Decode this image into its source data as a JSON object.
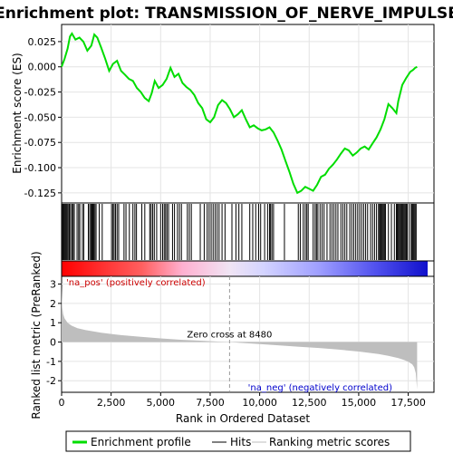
{
  "chart_data": {
    "type": "line",
    "title": "Enrichment plot: TRANSMISSION_OF_NERVE_IMPULSE",
    "xlabel": "Rank in Ordered Dataset",
    "xlim": [
      0,
      18800
    ],
    "x_ticks": [
      0,
      2500,
      5000,
      7500,
      10000,
      12500,
      15000,
      17500
    ],
    "x_tick_labels": [
      "0",
      "2,500",
      "5,000",
      "7,500",
      "10,000",
      "12,500",
      "15,000",
      "17,500"
    ],
    "panels": {
      "es": {
        "ylabel": "Enrichment score (ES)",
        "ylim": [
          -0.135,
          0.042
        ],
        "y_ticks": [
          0.025,
          0.0,
          -0.025,
          -0.05,
          -0.075,
          -0.1,
          -0.125
        ],
        "y_tick_labels": [
          "0.025",
          "0.000",
          "-0.025",
          "-0.050",
          "-0.075",
          "-0.100",
          "-0.125"
        ],
        "series": {
          "name": "Enrichment profile",
          "color": "#00dd00",
          "x": [
            0,
            150,
            300,
            420,
            520,
            700,
            900,
            1100,
            1300,
            1500,
            1650,
            1800,
            2000,
            2200,
            2400,
            2600,
            2800,
            3000,
            3200,
            3400,
            3600,
            3800,
            4000,
            4200,
            4400,
            4550,
            4700,
            4900,
            5100,
            5300,
            5500,
            5700,
            5900,
            6100,
            6300,
            6500,
            6700,
            6900,
            7100,
            7300,
            7500,
            7700,
            7900,
            8100,
            8300,
            8500,
            8700,
            8900,
            9100,
            9300,
            9500,
            9700,
            9900,
            10100,
            10300,
            10500,
            10700,
            10900,
            11100,
            11300,
            11500,
            11700,
            11900,
            12100,
            12300,
            12500,
            12700,
            12900,
            13100,
            13300,
            13500,
            13700,
            13900,
            14100,
            14300,
            14500,
            14700,
            14900,
            15100,
            15300,
            15500,
            15700,
            15900,
            16100,
            16300,
            16500,
            16700,
            16900,
            17000,
            17200,
            17400,
            17600,
            17750,
            17850,
            17950
          ],
          "y": [
            0.0,
            0.008,
            0.018,
            0.03,
            0.033,
            0.027,
            0.029,
            0.025,
            0.016,
            0.021,
            0.032,
            0.029,
            0.019,
            0.008,
            -0.004,
            0.003,
            0.006,
            -0.004,
            -0.008,
            -0.012,
            -0.014,
            -0.021,
            -0.025,
            -0.031,
            -0.034,
            -0.026,
            -0.014,
            -0.021,
            -0.018,
            -0.012,
            -0.001,
            -0.01,
            -0.007,
            -0.016,
            -0.02,
            -0.023,
            -0.028,
            -0.036,
            -0.041,
            -0.052,
            -0.055,
            -0.05,
            -0.038,
            -0.033,
            -0.036,
            -0.042,
            -0.05,
            -0.047,
            -0.043,
            -0.052,
            -0.06,
            -0.058,
            -0.061,
            -0.063,
            -0.062,
            -0.06,
            -0.065,
            -0.073,
            -0.082,
            -0.093,
            -0.104,
            -0.116,
            -0.125,
            -0.123,
            -0.119,
            -0.121,
            -0.123,
            -0.117,
            -0.109,
            -0.107,
            -0.101,
            -0.097,
            -0.092,
            -0.086,
            -0.081,
            -0.083,
            -0.088,
            -0.085,
            -0.081,
            -0.079,
            -0.082,
            -0.076,
            -0.07,
            -0.062,
            -0.052,
            -0.037,
            -0.041,
            -0.046,
            -0.034,
            -0.018,
            -0.011,
            -0.005,
            -0.003,
            -0.001,
            0.0
          ]
        }
      },
      "hits": {
        "label": "Hits",
        "positions": [
          40,
          90,
          130,
          180,
          230,
          280,
          330,
          390,
          450,
          520,
          580,
          640,
          780,
          860,
          920,
          1050,
          1120,
          1350,
          1420,
          1480,
          1530,
          1580,
          1620,
          1680,
          1740,
          1900,
          2050,
          2520,
          2590,
          2650,
          2720,
          2800,
          2880,
          3150,
          3250,
          3420,
          3600,
          3700,
          3780,
          4050,
          4200,
          4450,
          4520,
          4600,
          4680,
          4800,
          5000,
          5100,
          5180,
          5250,
          5320,
          5400,
          5600,
          5700,
          5850,
          5950,
          6050,
          6350,
          6450,
          6550,
          7000,
          7200,
          7350,
          7450,
          7550,
          7650,
          7750,
          7850,
          7950,
          8100,
          8250,
          8600,
          8800,
          8950,
          9100,
          9500,
          9650,
          9800,
          9950,
          10050,
          10250,
          10400,
          10500,
          10550,
          10620,
          10700,
          11250,
          11950,
          12050,
          12200,
          12300,
          12380,
          12450,
          12700,
          12800,
          12870,
          12940,
          13050,
          13150,
          13250,
          13400,
          13550,
          13650,
          13750,
          13850,
          13950,
          14100,
          14200,
          14300,
          14400,
          14550,
          14650,
          14750,
          14850,
          14950,
          15050,
          15150,
          15250,
          15350,
          15450,
          15600,
          15700,
          15800,
          15900,
          16000,
          16050,
          16100,
          16150,
          16200,
          16250,
          16300,
          16350,
          16500,
          16650,
          16800,
          16900,
          16950,
          17000,
          17050,
          17100,
          17150,
          17200,
          17250,
          17300,
          17350,
          17400,
          17450,
          17550,
          17650,
          17700,
          17750,
          17800,
          17850,
          17900
        ]
      },
      "ranked_metric": {
        "ylabel": "Ranked list metric (PreRanked)",
        "ylim": [
          -2.6,
          3.4
        ],
        "y_ticks": [
          3,
          2,
          1,
          0,
          -1,
          -2
        ],
        "y_tick_labels": [
          "3",
          "2",
          "1",
          "0",
          "-1",
          "-2"
        ],
        "series": {
          "name": "Ranking metric scores",
          "color": "#bebebe",
          "x": [
            0,
            30,
            80,
            150,
            300,
            500,
            800,
            1200,
            2000,
            3000,
            4000,
            5000,
            6000,
            7000,
            8000,
            8480,
            9000,
            10000,
            11000,
            12000,
            13000,
            14000,
            15000,
            16000,
            16500,
            17000,
            17300,
            17500,
            17700,
            17800,
            17880,
            17950
          ],
          "y": [
            2.9,
            1.8,
            1.45,
            1.22,
            1.0,
            0.85,
            0.72,
            0.62,
            0.48,
            0.36,
            0.27,
            0.19,
            0.12,
            0.07,
            0.02,
            0.0,
            -0.04,
            -0.1,
            -0.17,
            -0.24,
            -0.31,
            -0.39,
            -0.49,
            -0.62,
            -0.71,
            -0.83,
            -0.93,
            -1.02,
            -1.15,
            -1.3,
            -1.6,
            -2.45
          ]
        },
        "zero_cross_label": "Zero cross at 8480",
        "zero_cross_x": 8480,
        "pos_label": "'na_pos' (positively correlated)",
        "neg_label": "'na_neg' (negatively correlated)",
        "pos_label_color": "#cc0000",
        "neg_label_color": "#0000cc"
      }
    },
    "legend": {
      "placement": "bottom",
      "items": [
        {
          "label": "Enrichment profile",
          "color": "#00dd00",
          "style": "line-thick"
        },
        {
          "label": "Hits",
          "color": "#000000",
          "style": "line"
        },
        {
          "label": "Ranking metric scores",
          "color": "#bebebe",
          "style": "line"
        }
      ]
    }
  }
}
